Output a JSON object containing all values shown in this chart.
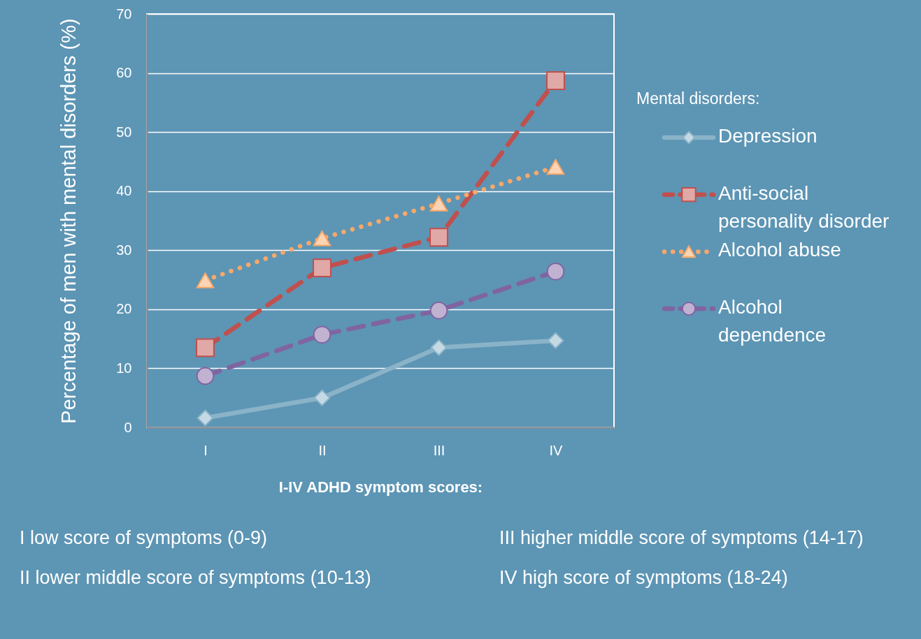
{
  "chart_data": {
    "type": "line",
    "categories": [
      "I",
      "II",
      "III",
      "IV"
    ],
    "xlabel": "I-IV ADHD symptom scores:",
    "ylabel": "Percentage of men with mental disorders (%)",
    "legend_title": "Mental disorders:",
    "ylim": [
      0,
      70
    ],
    "yticks": [
      0,
      10,
      20,
      30,
      40,
      50,
      60,
      70
    ],
    "grid": "y",
    "legend": "right",
    "series": [
      {
        "name": "Depression",
        "color": "#8ab3c8",
        "marker": "diamond",
        "line_style": "solid",
        "values": [
          1.6,
          5.0,
          13.5,
          14.7
        ]
      },
      {
        "name": "Anti-social personality disorder",
        "color": "#c0504d",
        "marker": "square",
        "line_style": "dashed",
        "values": [
          13.5,
          27.0,
          32.2,
          58.7
        ]
      },
      {
        "name": "Alcohol abuse",
        "color": "#f8a86a",
        "marker": "triangle",
        "line_style": "dotted",
        "values": [
          24.9,
          32.0,
          37.9,
          44.1
        ]
      },
      {
        "name": "Alcohol dependence",
        "color": "#8064a2",
        "marker": "circle",
        "line_style": "dashed",
        "values": [
          8.7,
          15.7,
          19.8,
          26.4
        ]
      }
    ],
    "annotations": [
      "I low score of symptoms (0-9)",
      "II lower middle score of symptoms (10-13)",
      "III higher middle score of symptoms (14-17)",
      "IV high score of symptoms (18-24)"
    ]
  }
}
